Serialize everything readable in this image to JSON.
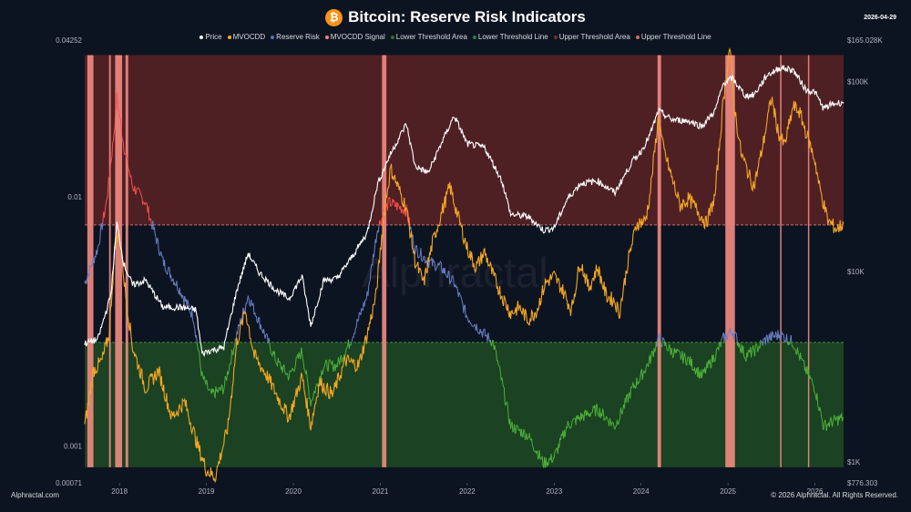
{
  "header": {
    "icon_glyph": "₿",
    "title": "Bitcoin: Reserve Risk Indicators",
    "date": "2026-04-29"
  },
  "legend": [
    {
      "label": "Price",
      "color": "#ffffff"
    },
    {
      "label": "MVOCDD",
      "color": "#f5a623"
    },
    {
      "label": "Reserve Risk",
      "color": "#5b6fb8"
    },
    {
      "label": "MVOCDD Signal",
      "color": "#f08080"
    },
    {
      "label": "Lower Threshold Area",
      "color": "#3a6b2f"
    },
    {
      "label": "Lower Threshold Line",
      "color": "#2e7d32"
    },
    {
      "label": "Upper Threshold Area",
      "color": "#6b2f30"
    },
    {
      "label": "Upper Threshold Line",
      "color": "#d96b6b"
    }
  ],
  "footer": {
    "left": "Alphractal.com",
    "right": "© 2026 Alphractal. All Rights Reserved.",
    "watermark": "Alphractal"
  },
  "colors": {
    "price": "#ffffff",
    "mvocdd": "#f5a623",
    "reserve_risk": "#6a7fc8",
    "reserve_risk_low": "#4caf3a",
    "reserve_risk_high": "#ff4d4d",
    "signal": "#f28b82",
    "upper_area": "#5a2225",
    "lower_area": "#1f4a22",
    "upper_line": "#e07b7b",
    "lower_line": "#4caf50"
  },
  "chart_data": {
    "type": "line",
    "title": "Bitcoin: Reserve Risk Indicators",
    "x_range": [
      2017.6,
      2026.33
    ],
    "x_ticks": [
      {
        "label": "2018",
        "x": 2018
      },
      {
        "label": "2019",
        "x": 2019
      },
      {
        "label": "2020",
        "x": 2020
      },
      {
        "label": "2021",
        "x": 2021
      },
      {
        "label": "2022",
        "x": 2022
      },
      {
        "label": "2023",
        "x": 2023
      },
      {
        "label": "2024",
        "x": 2024
      },
      {
        "label": "2025",
        "x": 2025
      },
      {
        "label": "2026",
        "x": 2026
      }
    ],
    "left_axis": {
      "scale": "log",
      "range": [
        0.00071,
        0.04252
      ],
      "ticks": [
        {
          "label": "0.04252",
          "value": 0.04252
        },
        {
          "label": "0.01",
          "value": 0.01
        },
        {
          "label": "0.001",
          "value": 0.001
        },
        {
          "label": "0.00071",
          "value": 0.00071
        }
      ]
    },
    "right_axis": {
      "scale": "log",
      "range": [
        776.303,
        165028
      ],
      "ticks": [
        {
          "label": "$165.028K",
          "value": 165028
        },
        {
          "label": "$100K",
          "value": 100000
        },
        {
          "label": "$10K",
          "value": 10000
        },
        {
          "label": "$1K",
          "value": 1000
        },
        {
          "label": "$776.303",
          "value": 776.303
        }
      ]
    },
    "upper_threshold": 0.0077,
    "lower_threshold": 0.0026,
    "series": [
      {
        "name": "Price",
        "axis": "right",
        "points": [
          [
            2017.6,
            4200
          ],
          [
            2017.75,
            4400
          ],
          [
            2017.9,
            7500
          ],
          [
            2017.97,
            18000
          ],
          [
            2018.05,
            11000
          ],
          [
            2018.15,
            8500
          ],
          [
            2018.3,
            9000
          ],
          [
            2018.5,
            6500
          ],
          [
            2018.7,
            6500
          ],
          [
            2018.88,
            6300
          ],
          [
            2018.95,
            3700
          ],
          [
            2019.0,
            3800
          ],
          [
            2019.2,
            4000
          ],
          [
            2019.35,
            8000
          ],
          [
            2019.48,
            12500
          ],
          [
            2019.6,
            10000
          ],
          [
            2019.8,
            8000
          ],
          [
            2019.95,
            7200
          ],
          [
            2020.1,
            9500
          ],
          [
            2020.2,
            5200
          ],
          [
            2020.35,
            9000
          ],
          [
            2020.5,
            9200
          ],
          [
            2020.65,
            11500
          ],
          [
            2020.85,
            16000
          ],
          [
            2020.97,
            29000
          ],
          [
            2021.1,
            40000
          ],
          [
            2021.3,
            60000
          ],
          [
            2021.4,
            36000
          ],
          [
            2021.55,
            33000
          ],
          [
            2021.7,
            47000
          ],
          [
            2021.85,
            66000
          ],
          [
            2022.0,
            47000
          ],
          [
            2022.2,
            45000
          ],
          [
            2022.4,
            30000
          ],
          [
            2022.5,
            20000
          ],
          [
            2022.7,
            19500
          ],
          [
            2022.88,
            16500
          ],
          [
            2023.0,
            17000
          ],
          [
            2023.15,
            24000
          ],
          [
            2023.3,
            29000
          ],
          [
            2023.5,
            30000
          ],
          [
            2023.7,
            26000
          ],
          [
            2023.9,
            38000
          ],
          [
            2024.0,
            43000
          ],
          [
            2024.1,
            52000
          ],
          [
            2024.2,
            70000
          ],
          [
            2024.35,
            63000
          ],
          [
            2024.55,
            62000
          ],
          [
            2024.7,
            58000
          ],
          [
            2024.85,
            70000
          ],
          [
            2024.95,
            98000
          ],
          [
            2025.05,
            104000
          ],
          [
            2025.2,
            84000
          ],
          [
            2025.3,
            85000
          ],
          [
            2025.45,
            108000
          ],
          [
            2025.6,
            118000
          ],
          [
            2025.75,
            115000
          ],
          [
            2025.9,
            90000
          ],
          [
            2026.0,
            88000
          ],
          [
            2026.1,
            72000
          ],
          [
            2026.2,
            76000
          ],
          [
            2026.33,
            78000
          ]
        ]
      },
      {
        "name": "Reserve Risk",
        "axis": "left",
        "points": [
          [
            2017.6,
            0.0045
          ],
          [
            2017.75,
            0.0062
          ],
          [
            2017.85,
            0.0095
          ],
          [
            2017.93,
            0.017
          ],
          [
            2017.97,
            0.025
          ],
          [
            2018.05,
            0.016
          ],
          [
            2018.15,
            0.011
          ],
          [
            2018.3,
            0.0095
          ],
          [
            2018.5,
            0.0055
          ],
          [
            2018.7,
            0.0042
          ],
          [
            2018.85,
            0.0033
          ],
          [
            2018.95,
            0.0019
          ],
          [
            2019.05,
            0.0016
          ],
          [
            2019.2,
            0.0017
          ],
          [
            2019.35,
            0.0028
          ],
          [
            2019.48,
            0.004
          ],
          [
            2019.6,
            0.0032
          ],
          [
            2019.8,
            0.0022
          ],
          [
            2019.95,
            0.0019
          ],
          [
            2020.1,
            0.0024
          ],
          [
            2020.2,
            0.0015
          ],
          [
            2020.35,
            0.0021
          ],
          [
            2020.5,
            0.0021
          ],
          [
            2020.65,
            0.0026
          ],
          [
            2020.85,
            0.004
          ],
          [
            2020.97,
            0.0075
          ],
          [
            2021.1,
            0.0095
          ],
          [
            2021.3,
            0.0088
          ],
          [
            2021.4,
            0.0062
          ],
          [
            2021.55,
            0.0055
          ],
          [
            2021.7,
            0.0052
          ],
          [
            2021.85,
            0.0045
          ],
          [
            2022.0,
            0.0033
          ],
          [
            2022.2,
            0.0028
          ],
          [
            2022.3,
            0.0026
          ],
          [
            2022.4,
            0.0018
          ],
          [
            2022.5,
            0.0012
          ],
          [
            2022.7,
            0.0011
          ],
          [
            2022.88,
            0.00085
          ],
          [
            2023.0,
            0.0009
          ],
          [
            2023.15,
            0.0012
          ],
          [
            2023.3,
            0.0013
          ],
          [
            2023.5,
            0.0014
          ],
          [
            2023.7,
            0.0012
          ],
          [
            2023.9,
            0.0017
          ],
          [
            2024.0,
            0.0019
          ],
          [
            2024.1,
            0.0022
          ],
          [
            2024.2,
            0.0027
          ],
          [
            2024.35,
            0.0024
          ],
          [
            2024.55,
            0.0022
          ],
          [
            2024.7,
            0.0019
          ],
          [
            2024.85,
            0.0023
          ],
          [
            2024.95,
            0.0027
          ],
          [
            2025.05,
            0.0029
          ],
          [
            2025.2,
            0.0023
          ],
          [
            2025.3,
            0.0024
          ],
          [
            2025.45,
            0.0027
          ],
          [
            2025.6,
            0.0028
          ],
          [
            2025.75,
            0.0026
          ],
          [
            2025.9,
            0.002
          ],
          [
            2026.0,
            0.0017
          ],
          [
            2026.1,
            0.0012
          ],
          [
            2026.2,
            0.00125
          ],
          [
            2026.33,
            0.0013
          ]
        ]
      },
      {
        "name": "MVOCDD",
        "axis": "left",
        "points": [
          [
            2017.6,
            0.0012
          ],
          [
            2017.7,
            0.002
          ],
          [
            2017.8,
            0.0022
          ],
          [
            2017.88,
            0.0028
          ],
          [
            2017.95,
            0.0065
          ],
          [
            2018.0,
            0.007
          ],
          [
            2018.08,
            0.0038
          ],
          [
            2018.15,
            0.0025
          ],
          [
            2018.3,
            0.0017
          ],
          [
            2018.45,
            0.002
          ],
          [
            2018.6,
            0.0013
          ],
          [
            2018.75,
            0.0015
          ],
          [
            2018.9,
            0.001
          ],
          [
            2019.0,
            0.0008
          ],
          [
            2019.1,
            0.00075
          ],
          [
            2019.25,
            0.0012
          ],
          [
            2019.35,
            0.0026
          ],
          [
            2019.45,
            0.0035
          ],
          [
            2019.55,
            0.0023
          ],
          [
            2019.7,
            0.0019
          ],
          [
            2019.85,
            0.0015
          ],
          [
            2019.95,
            0.0013
          ],
          [
            2020.1,
            0.0019
          ],
          [
            2020.2,
            0.0012
          ],
          [
            2020.3,
            0.0018
          ],
          [
            2020.45,
            0.0016
          ],
          [
            2020.6,
            0.0022
          ],
          [
            2020.75,
            0.0021
          ],
          [
            2020.85,
            0.0028
          ],
          [
            2020.95,
            0.004
          ],
          [
            2021.05,
            0.009
          ],
          [
            2021.12,
            0.013
          ],
          [
            2021.2,
            0.011
          ],
          [
            2021.3,
            0.009
          ],
          [
            2021.4,
            0.0055
          ],
          [
            2021.5,
            0.0045
          ],
          [
            2021.6,
            0.0065
          ],
          [
            2021.7,
            0.0085
          ],
          [
            2021.8,
            0.011
          ],
          [
            2021.9,
            0.0082
          ],
          [
            2022.0,
            0.0062
          ],
          [
            2022.1,
            0.0052
          ],
          [
            2022.2,
            0.006
          ],
          [
            2022.3,
            0.0048
          ],
          [
            2022.4,
            0.004
          ],
          [
            2022.5,
            0.0034
          ],
          [
            2022.6,
            0.0036
          ],
          [
            2022.7,
            0.0032
          ],
          [
            2022.8,
            0.0035
          ],
          [
            2022.9,
            0.0045
          ],
          [
            2023.0,
            0.0048
          ],
          [
            2023.1,
            0.0042
          ],
          [
            2023.2,
            0.0035
          ],
          [
            2023.3,
            0.0055
          ],
          [
            2023.4,
            0.0043
          ],
          [
            2023.5,
            0.0052
          ],
          [
            2023.6,
            0.004
          ],
          [
            2023.7,
            0.0038
          ],
          [
            2023.75,
            0.0034
          ],
          [
            2023.85,
            0.0055
          ],
          [
            2023.95,
            0.0078
          ],
          [
            2024.05,
            0.008
          ],
          [
            2024.1,
            0.01
          ],
          [
            2024.2,
            0.021
          ],
          [
            2024.25,
            0.016
          ],
          [
            2024.35,
            0.012
          ],
          [
            2024.45,
            0.0092
          ],
          [
            2024.55,
            0.0098
          ],
          [
            2024.65,
            0.0088
          ],
          [
            2024.75,
            0.0078
          ],
          [
            2024.85,
            0.01
          ],
          [
            2024.95,
            0.025
          ],
          [
            2025.02,
            0.04
          ],
          [
            2025.08,
            0.022
          ],
          [
            2025.15,
            0.015
          ],
          [
            2025.25,
            0.012
          ],
          [
            2025.3,
            0.011
          ],
          [
            2025.4,
            0.016
          ],
          [
            2025.5,
            0.025
          ],
          [
            2025.58,
            0.018
          ],
          [
            2025.65,
            0.016
          ],
          [
            2025.75,
            0.023
          ],
          [
            2025.82,
            0.022
          ],
          [
            2025.9,
            0.018
          ],
          [
            2026.0,
            0.014
          ],
          [
            2026.05,
            0.011
          ],
          [
            2026.15,
            0.008
          ],
          [
            2026.25,
            0.0074
          ],
          [
            2026.33,
            0.0078
          ]
        ]
      }
    ],
    "signal_bands": [
      [
        2017.63,
        2017.7
      ],
      [
        2017.88,
        2017.9
      ],
      [
        2017.95,
        2018.03
      ],
      [
        2018.07,
        2018.1
      ],
      [
        2021.02,
        2021.07
      ],
      [
        2024.19,
        2024.23
      ],
      [
        2024.97,
        2025.08
      ],
      [
        2025.6,
        2025.61
      ],
      [
        2025.92,
        2025.93
      ]
    ]
  }
}
